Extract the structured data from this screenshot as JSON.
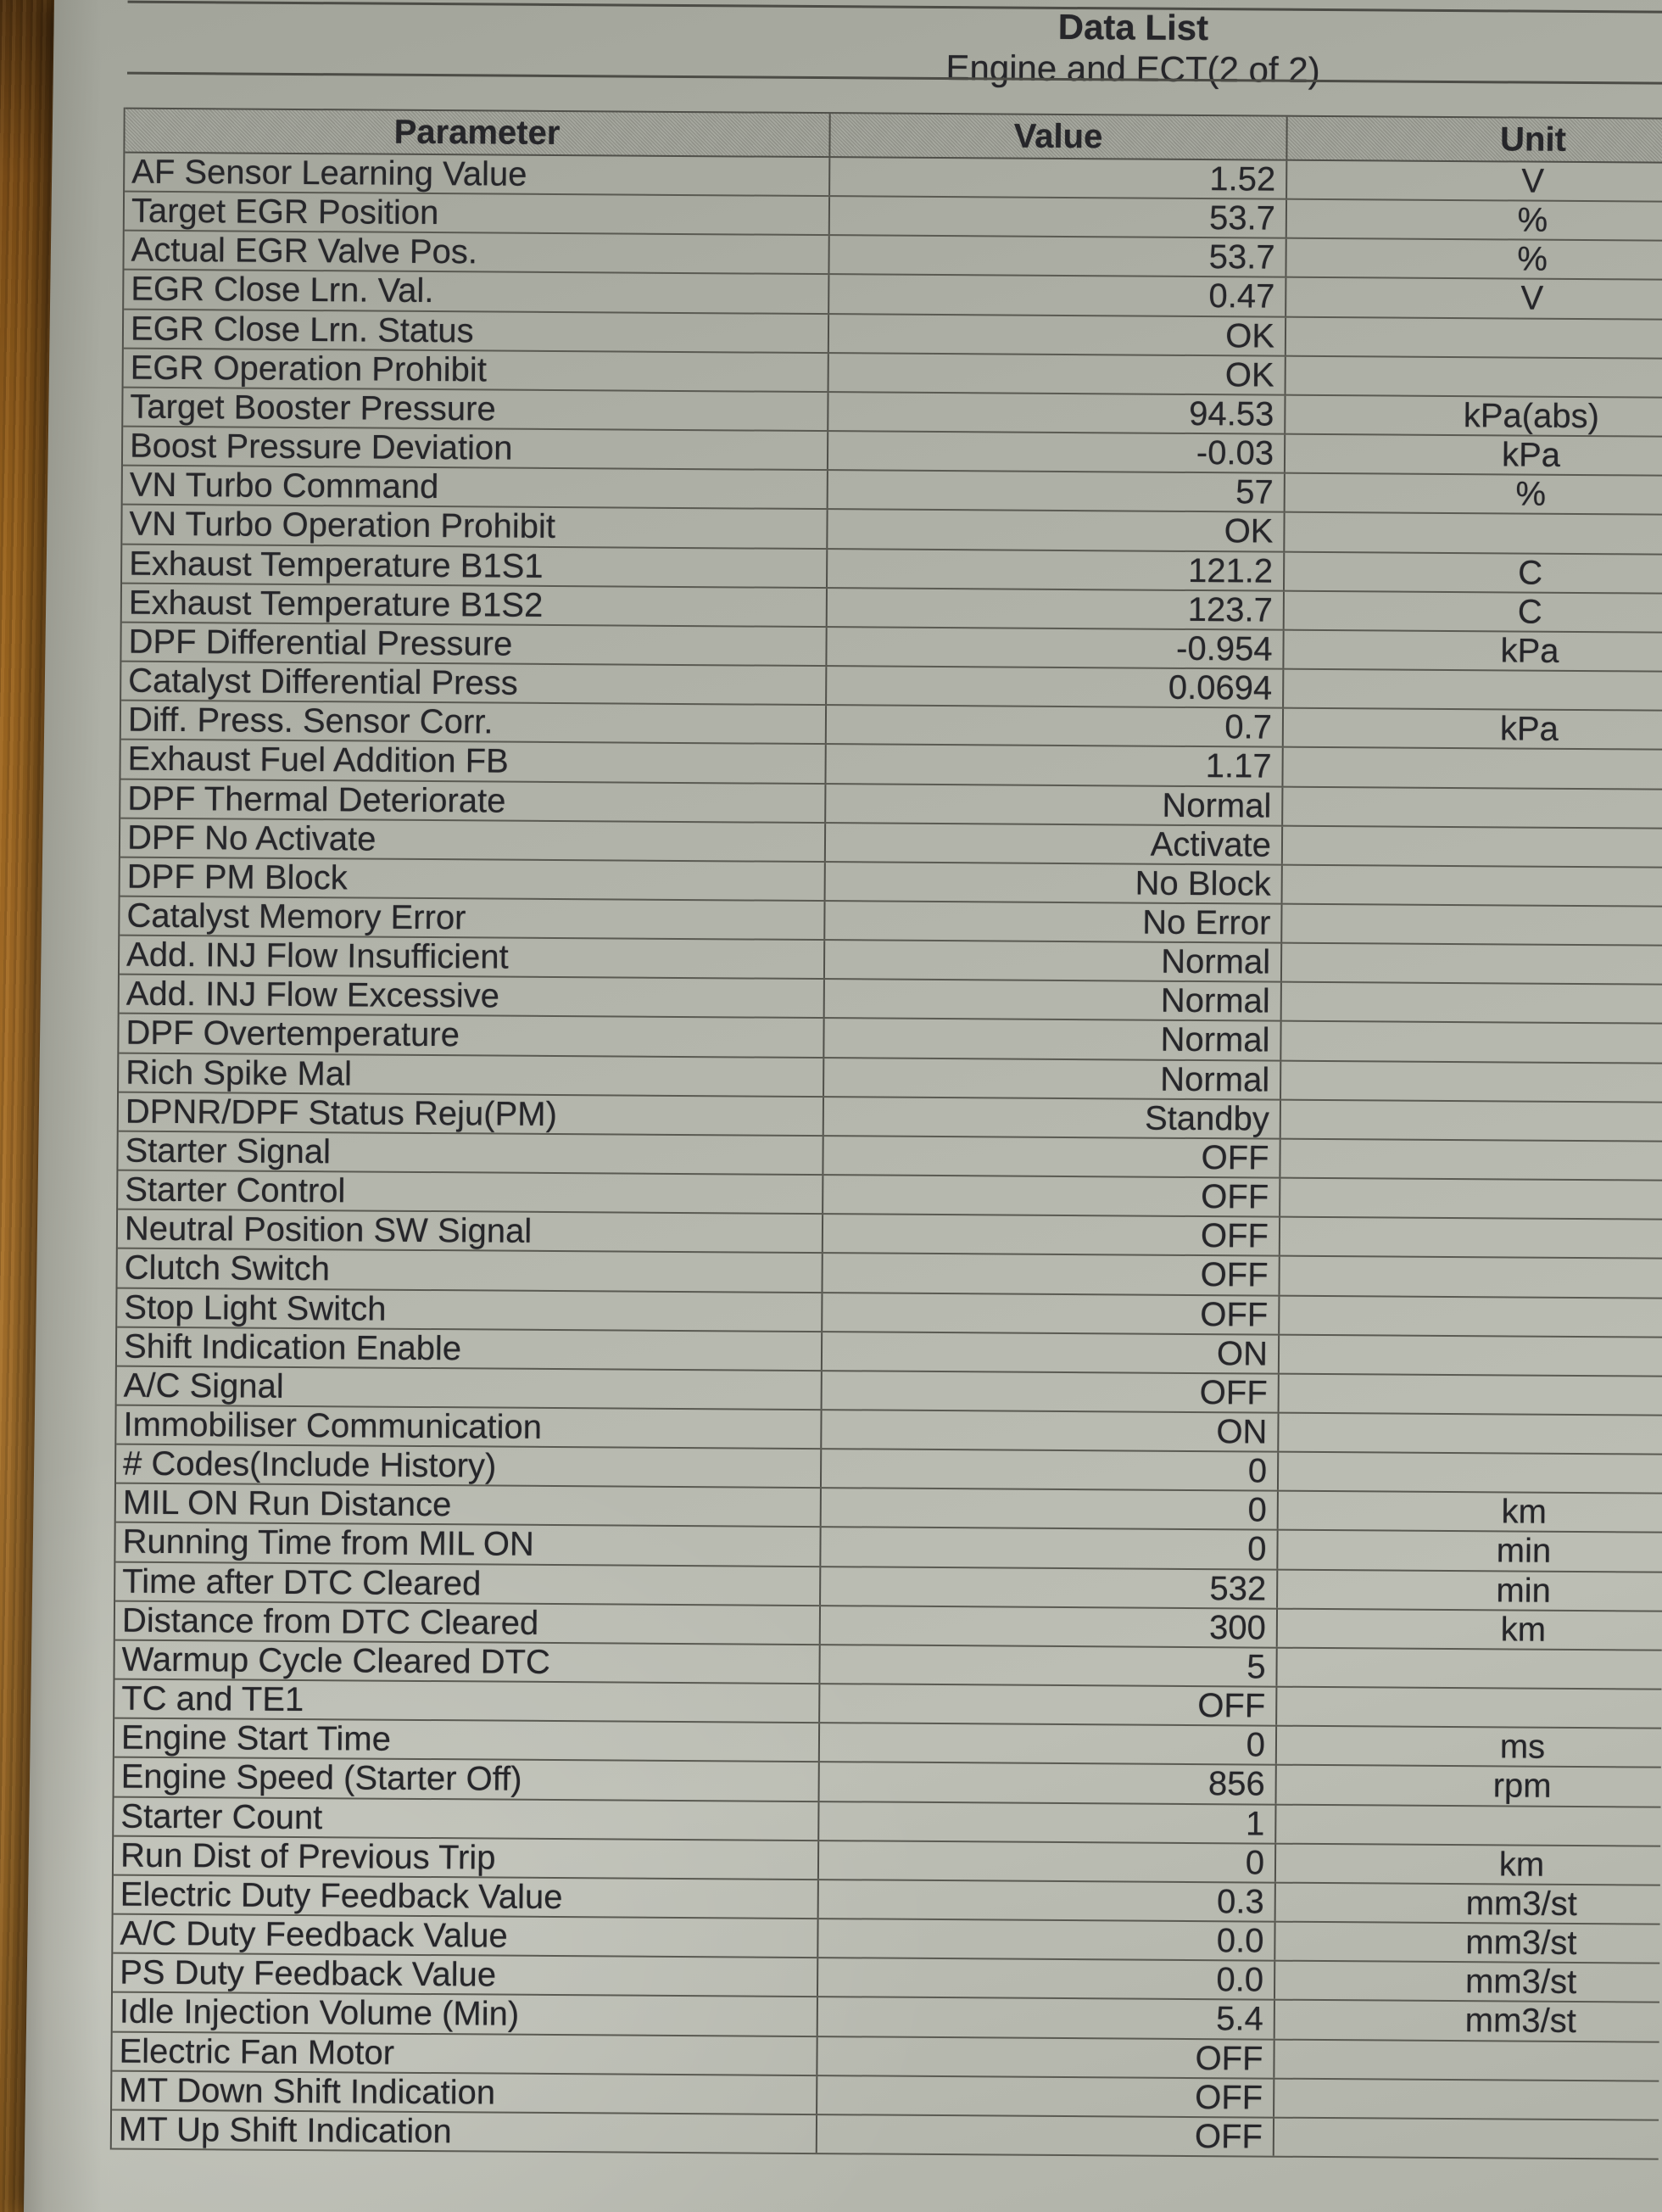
{
  "page": {
    "title": "Data List",
    "subtitle": "Engine and ECT(2 of 2)"
  },
  "table": {
    "headers": {
      "parameter": "Parameter",
      "value": "Value",
      "unit": "Unit"
    },
    "rows": [
      {
        "parameter": "AF Sensor Learning Value",
        "value": "1.52",
        "unit": "V"
      },
      {
        "parameter": "Target EGR Position",
        "value": "53.7",
        "unit": "%"
      },
      {
        "parameter": "Actual EGR Valve Pos.",
        "value": "53.7",
        "unit": "%"
      },
      {
        "parameter": "EGR Close Lrn. Val.",
        "value": "0.47",
        "unit": "V"
      },
      {
        "parameter": "EGR Close Lrn. Status",
        "value": "OK",
        "unit": ""
      },
      {
        "parameter": "EGR Operation Prohibit",
        "value": "OK",
        "unit": ""
      },
      {
        "parameter": "Target Booster Pressure",
        "value": "94.53",
        "unit": "kPa(abs)"
      },
      {
        "parameter": "Boost Pressure Deviation",
        "value": "-0.03",
        "unit": "kPa"
      },
      {
        "parameter": "VN Turbo Command",
        "value": "57",
        "unit": "%"
      },
      {
        "parameter": "VN Turbo Operation Prohibit",
        "value": "OK",
        "unit": ""
      },
      {
        "parameter": "Exhaust Temperature B1S1",
        "value": "121.2",
        "unit": "C"
      },
      {
        "parameter": "Exhaust Temperature B1S2",
        "value": "123.7",
        "unit": "C"
      },
      {
        "parameter": "DPF Differential Pressure",
        "value": "-0.954",
        "unit": "kPa"
      },
      {
        "parameter": "Catalyst Differential Press",
        "value": "0.0694",
        "unit": ""
      },
      {
        "parameter": "Diff. Press. Sensor Corr.",
        "value": "0.7",
        "unit": "kPa"
      },
      {
        "parameter": "Exhaust Fuel Addition FB",
        "value": "1.17",
        "unit": ""
      },
      {
        "parameter": "DPF Thermal Deteriorate",
        "value": "Normal",
        "unit": ""
      },
      {
        "parameter": "DPF No Activate",
        "value": "Activate",
        "unit": ""
      },
      {
        "parameter": "DPF PM Block",
        "value": "No Block",
        "unit": ""
      },
      {
        "parameter": "Catalyst Memory Error",
        "value": "No Error",
        "unit": ""
      },
      {
        "parameter": "Add. INJ Flow Insufficient",
        "value": "Normal",
        "unit": ""
      },
      {
        "parameter": "Add. INJ Flow Excessive",
        "value": "Normal",
        "unit": ""
      },
      {
        "parameter": "DPF Overtemperature",
        "value": "Normal",
        "unit": ""
      },
      {
        "parameter": "Rich Spike Mal",
        "value": "Normal",
        "unit": ""
      },
      {
        "parameter": "DPNR/DPF Status Reju(PM)",
        "value": "Standby",
        "unit": ""
      },
      {
        "parameter": "Starter Signal",
        "value": "OFF",
        "unit": ""
      },
      {
        "parameter": "Starter Control",
        "value": "OFF",
        "unit": ""
      },
      {
        "parameter": "Neutral Position SW Signal",
        "value": "OFF",
        "unit": ""
      },
      {
        "parameter": "Clutch Switch",
        "value": "OFF",
        "unit": ""
      },
      {
        "parameter": "Stop Light Switch",
        "value": "OFF",
        "unit": ""
      },
      {
        "parameter": "Shift Indication Enable",
        "value": "ON",
        "unit": ""
      },
      {
        "parameter": "A/C Signal",
        "value": "OFF",
        "unit": ""
      },
      {
        "parameter": "Immobiliser Communication",
        "value": "ON",
        "unit": ""
      },
      {
        "parameter": "# Codes(Include History)",
        "value": "0",
        "unit": ""
      },
      {
        "parameter": "MIL ON Run Distance",
        "value": "0",
        "unit": "km"
      },
      {
        "parameter": "Running Time from MIL ON",
        "value": "0",
        "unit": "min"
      },
      {
        "parameter": "Time after DTC Cleared",
        "value": "532",
        "unit": "min"
      },
      {
        "parameter": "Distance from DTC Cleared",
        "value": "300",
        "unit": "km"
      },
      {
        "parameter": "Warmup Cycle Cleared DTC",
        "value": "5",
        "unit": ""
      },
      {
        "parameter": "TC and TE1",
        "value": "OFF",
        "unit": ""
      },
      {
        "parameter": "Engine Start Time",
        "value": "0",
        "unit": "ms"
      },
      {
        "parameter": "Engine Speed (Starter Off)",
        "value": "856",
        "unit": "rpm"
      },
      {
        "parameter": "Starter Count",
        "value": "1",
        "unit": ""
      },
      {
        "parameter": "Run Dist of Previous Trip",
        "value": "0",
        "unit": "km"
      },
      {
        "parameter": "Electric Duty Feedback Value",
        "value": "0.3",
        "unit": "mm3/st"
      },
      {
        "parameter": "A/C Duty Feedback Value",
        "value": "0.0",
        "unit": "mm3/st"
      },
      {
        "parameter": "PS Duty Feedback Value",
        "value": "0.0",
        "unit": "mm3/st"
      },
      {
        "parameter": "Idle Injection Volume (Min)",
        "value": "5.4",
        "unit": "mm3/st"
      },
      {
        "parameter": "Electric Fan Motor",
        "value": "OFF",
        "unit": ""
      },
      {
        "parameter": "MT Down Shift Indication",
        "value": "OFF",
        "unit": ""
      },
      {
        "parameter": "MT Up Shift Indication",
        "value": "OFF",
        "unit": ""
      }
    ]
  },
  "colors": {
    "paper": "#b4b6ac",
    "wood": "#a86f28",
    "header_fill": "#a1a399",
    "grid_line": "#50504a",
    "text": "#26262a"
  }
}
